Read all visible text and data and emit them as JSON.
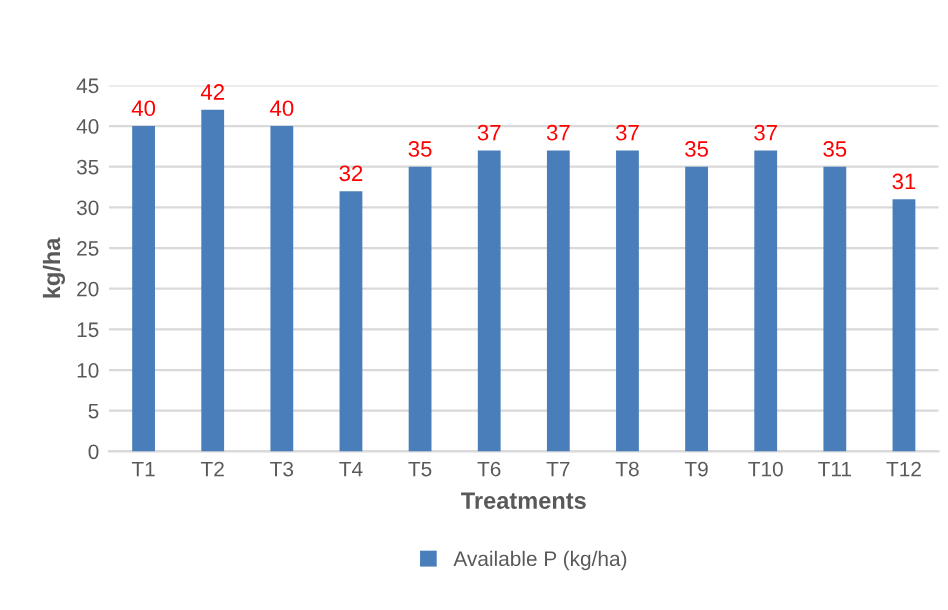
{
  "chart_data": {
    "type": "bar",
    "xlabel": "Treatments",
    "ylabel": "kg/ha",
    "categories": [
      "T1",
      "T2",
      "T3",
      "T4",
      "T5",
      "T6",
      "T7",
      "T8",
      "T9",
      "T10",
      "T11",
      "T12"
    ],
    "series": [
      {
        "name": "Available P (kg/ha)",
        "color": "#4a7ebb",
        "values": [
          40,
          42,
          40,
          32,
          35,
          37,
          37,
          37,
          35,
          37,
          35,
          31
        ]
      }
    ],
    "ylim": [
      0,
      45
    ],
    "yticks": [
      0,
      5,
      10,
      15,
      20,
      25,
      30,
      35,
      40,
      45
    ],
    "grid": "y",
    "legend": "bottom",
    "data_labels": true
  }
}
